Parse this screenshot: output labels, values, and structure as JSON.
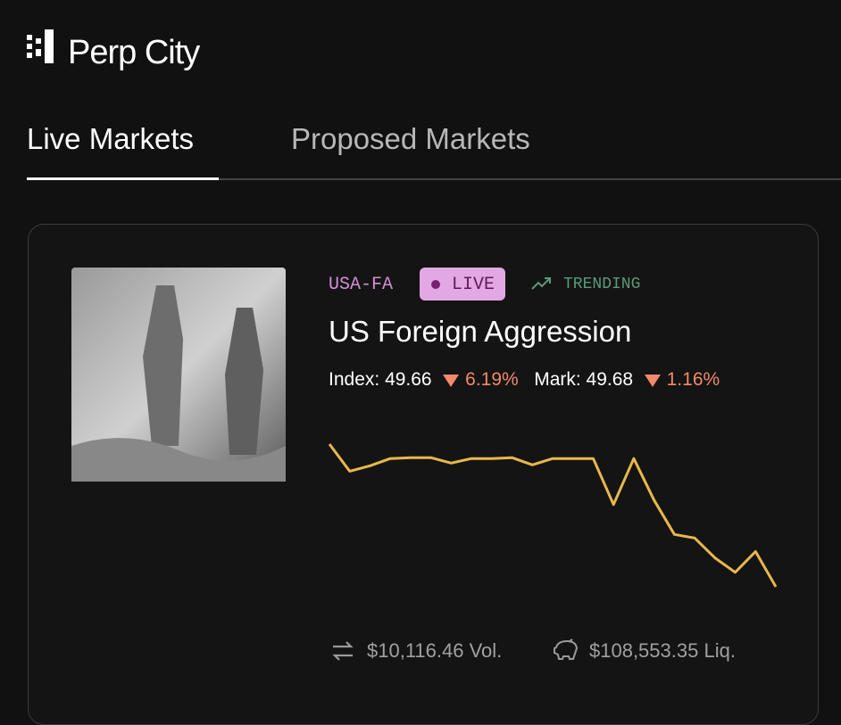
{
  "header": {
    "brand": "Perp City"
  },
  "tabs": [
    "Live Markets",
    "Proposed Markets"
  ],
  "market": {
    "ticker": "USA-FA",
    "status": "LIVE",
    "tag": "TRENDING",
    "title": "US Foreign Aggression",
    "index_label": "Index:",
    "index": "49.66",
    "index_change": "6.19%",
    "mark_label": "Mark:",
    "mark": "49.68",
    "mark_change": "1.16%",
    "sparkline": {
      "color": "#e8b84a",
      "values": [
        202,
        172,
        178,
        186,
        187,
        187,
        181,
        186,
        186,
        187,
        179,
        186,
        186,
        186,
        135,
        186,
        140,
        102,
        98,
        76,
        60,
        83,
        44
      ]
    },
    "volume": "$10,116.46 Vol.",
    "liquidity": "$108,553.35 Liq."
  }
}
